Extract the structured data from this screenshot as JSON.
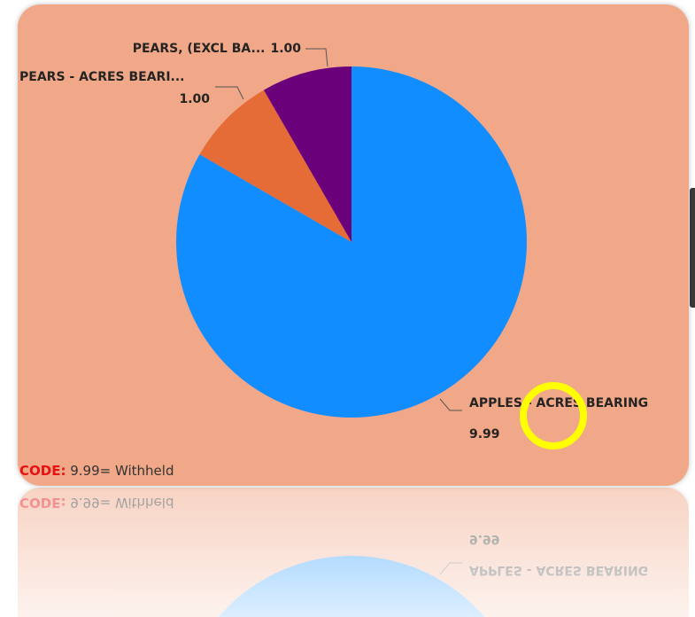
{
  "chart_data": {
    "type": "pie",
    "categories": [
      "APPLES - ACRES BEARING",
      "PEARS - ACRES BEARI...",
      "PEARS, (EXCL BA..."
    ],
    "values": [
      9.99,
      1,
      1
    ],
    "value_labels": [
      "9.99",
      "1.00",
      "1.00"
    ],
    "colors": [
      "#118dff",
      "#e66c37",
      "#6b007b"
    ],
    "footnote": {
      "label": "CODE:",
      "text": "9.99= Withheld"
    }
  }
}
